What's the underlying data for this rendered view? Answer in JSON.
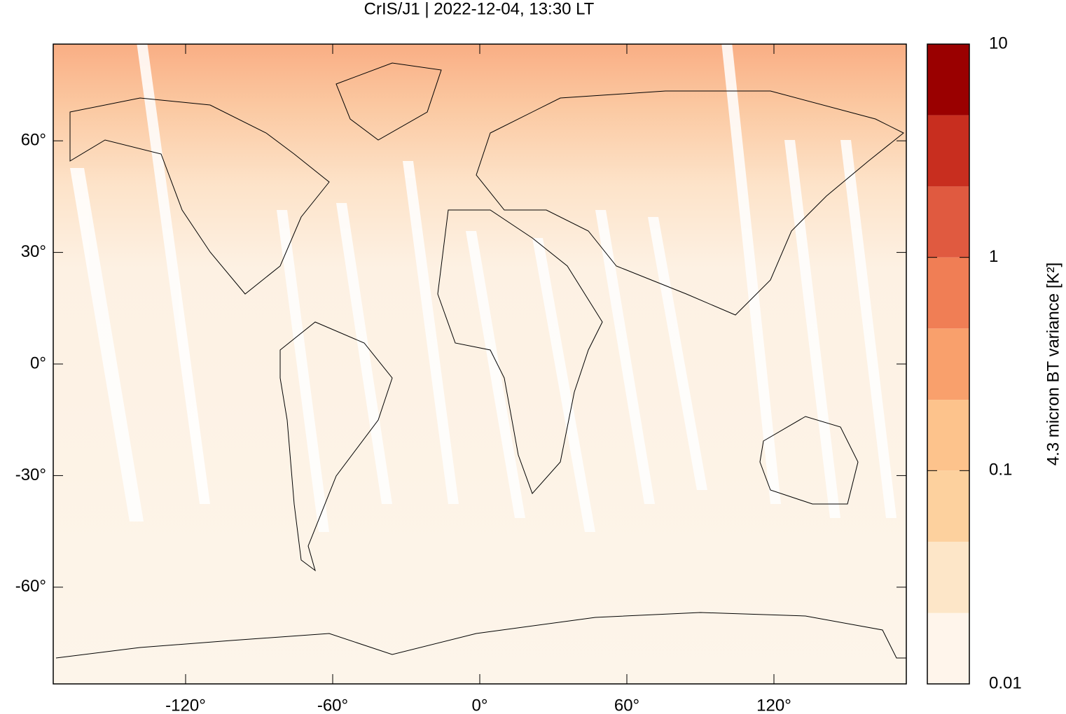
{
  "chart_data": {
    "type": "map",
    "title": "CrIS/J1 | 2022-12-04, 13:30 LT",
    "xlim": [
      -174,
      174
    ],
    "ylim": [
      -86,
      86
    ],
    "xticks": [
      {
        "value": -120,
        "label": "-120°"
      },
      {
        "value": -60,
        "label": "-60°"
      },
      {
        "value": 0,
        "label": "0°"
      },
      {
        "value": 60,
        "label": "60°"
      },
      {
        "value": 120,
        "label": "120°"
      }
    ],
    "yticks": [
      {
        "value": -60,
        "label": "-60°"
      },
      {
        "value": -30,
        "label": "-30°"
      },
      {
        "value": 0,
        "label": "0°"
      },
      {
        "value": 30,
        "label": "30°"
      },
      {
        "value": 60,
        "label": "60°"
      }
    ],
    "colorbar": {
      "label": "4.3 micron BT variance [K²]",
      "log_scale": true,
      "lim": [
        0.01,
        10
      ],
      "ticks": [
        0.01,
        0.1,
        1,
        10
      ],
      "levels": [
        0.01,
        0.0215,
        0.0464,
        0.1,
        0.215,
        0.464,
        1,
        2.15,
        4.64,
        10
      ],
      "colors": [
        "#fff5eb",
        "#fde6c8",
        "#fdd19e",
        "#fdc38c",
        "#f9a06c",
        "#f07e55",
        "#e05a40",
        "#c82e1f",
        "#9a0000"
      ]
    }
  }
}
